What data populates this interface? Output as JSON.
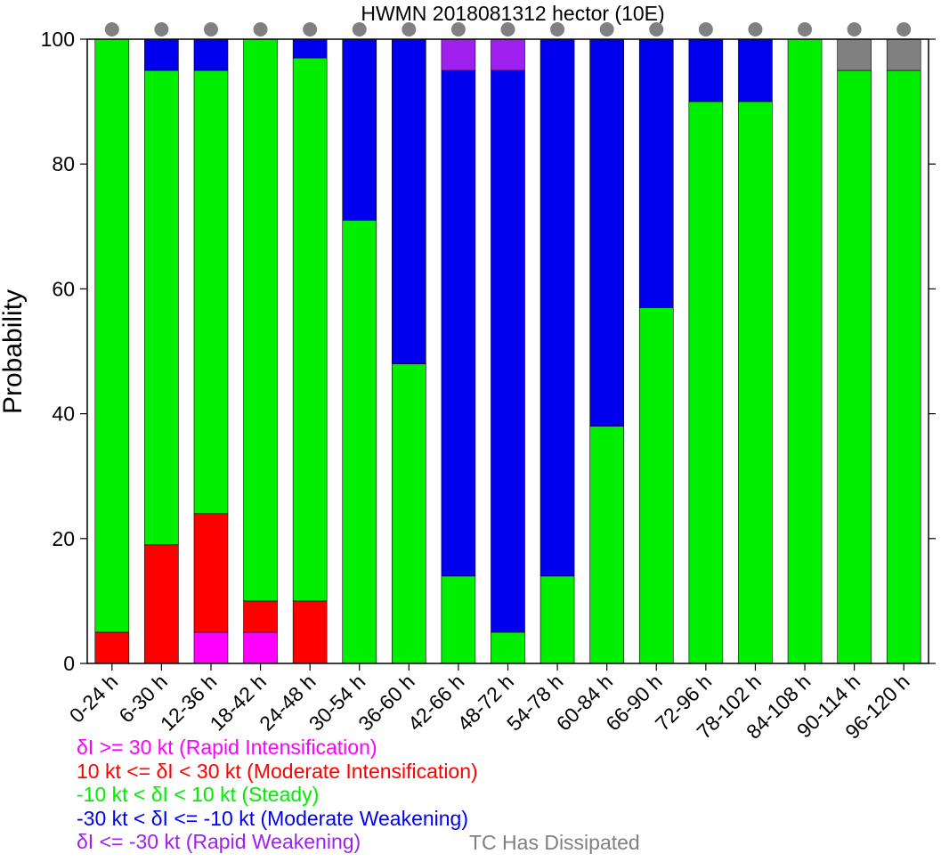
{
  "chart_data": {
    "type": "bar",
    "stacked": true,
    "title": "HWMN 2018081312 hector (10E)",
    "ylabel": "Probability",
    "xlabel": "",
    "ylim": [
      0,
      100
    ],
    "yticks": [
      "0",
      "20",
      "40",
      "60",
      "80",
      "100"
    ],
    "categories": [
      "0-24 h",
      "6-30 h",
      "12-36 h",
      "18-42 h",
      "24-48 h",
      "30-54 h",
      "36-60 h",
      "42-66 h",
      "48-72 h",
      "54-78 h",
      "60-84 h",
      "66-90 h",
      "72-96 h",
      "78-102 h",
      "84-108 h",
      "90-114 h",
      "96-120 h"
    ],
    "series": [
      {
        "key": "ri",
        "color": "#ff00ff",
        "values": [
          0,
          0,
          5,
          5,
          0,
          0,
          0,
          0,
          0,
          0,
          0,
          0,
          0,
          0,
          0,
          0,
          0
        ]
      },
      {
        "key": "mi",
        "color": "#ff0000",
        "values": [
          5,
          19,
          19,
          5,
          10,
          0,
          0,
          0,
          0,
          0,
          0,
          0,
          0,
          0,
          0,
          0,
          0
        ]
      },
      {
        "key": "steady",
        "color": "#00ee00",
        "values": [
          95,
          76,
          71,
          90,
          87,
          71,
          48,
          14,
          5,
          14,
          38,
          57,
          90,
          90,
          100,
          95,
          95
        ]
      },
      {
        "key": "mw",
        "color": "#0000ee",
        "values": [
          0,
          5,
          5,
          0,
          3,
          29,
          52,
          81,
          90,
          86,
          62,
          43,
          10,
          10,
          0,
          0,
          0
        ]
      },
      {
        "key": "rw",
        "color": "#a020f0",
        "values": [
          0,
          0,
          0,
          0,
          0,
          0,
          0,
          5,
          5,
          0,
          0,
          0,
          0,
          0,
          0,
          0,
          0
        ]
      },
      {
        "key": "dissipated",
        "color": "#808080",
        "values": [
          0,
          0,
          0,
          0,
          0,
          0,
          0,
          0,
          0,
          0,
          0,
          0,
          0,
          0,
          0,
          5,
          5
        ]
      }
    ],
    "markers_color": "#808080",
    "grid": false
  },
  "legend": {
    "ri": "δI >= 30 kt (Rapid Intensification)",
    "mi": "10 kt <= δI < 30 kt (Moderate Intensification)",
    "steady": "-10 kt < δI < 10 kt (Steady)",
    "mw": "-30 kt < δI <= -10 kt (Moderate Weakening)",
    "rw": "δI <= -30 kt (Rapid Weakening)",
    "dissipated": "TC Has Dissipated"
  },
  "colors": {
    "ri": "#ff00ff",
    "mi": "#ff0000",
    "steady": "#00ee00",
    "mw": "#0000ee",
    "rw": "#a020f0",
    "dissipated": "#808080"
  }
}
